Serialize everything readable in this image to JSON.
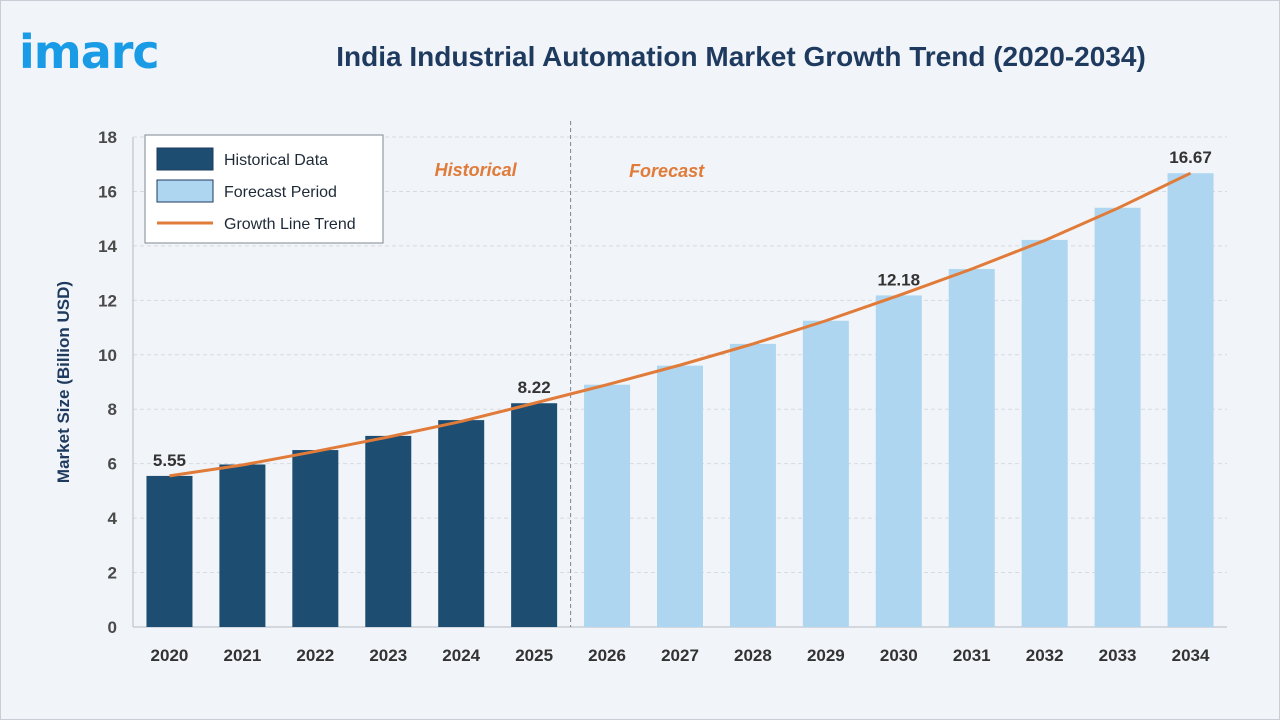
{
  "logo": {
    "text": "imarc",
    "color": "#1a9be6"
  },
  "chart_data": {
    "type": "bar",
    "title": "India Industrial Automation Market Growth Trend (2020-2034)",
    "ylabel": "Market Size (Billion USD)",
    "xlabel": "",
    "ylim": [
      0,
      18
    ],
    "yticks": [
      0,
      2,
      4,
      6,
      8,
      10,
      12,
      14,
      16,
      18
    ],
    "grid": true,
    "categories": [
      "2020",
      "2021",
      "2022",
      "2023",
      "2024",
      "2025",
      "2026",
      "2027",
      "2028",
      "2029",
      "2030",
      "2031",
      "2032",
      "2033",
      "2034"
    ],
    "series": [
      {
        "name": "Historical Data",
        "color": "#1e4d72",
        "values": [
          5.55,
          5.97,
          6.5,
          7.02,
          7.6,
          8.22,
          null,
          null,
          null,
          null,
          null,
          null,
          null,
          null,
          null
        ]
      },
      {
        "name": "Forecast Period",
        "color": "#aed6f1",
        "values": [
          null,
          null,
          null,
          null,
          null,
          null,
          8.9,
          9.6,
          10.4,
          11.25,
          12.18,
          13.15,
          14.22,
          15.4,
          16.67
        ]
      },
      {
        "name": "Growth Line Trend",
        "type": "line",
        "color": "#e07b39",
        "values": [
          5.55,
          5.95,
          6.45,
          6.98,
          7.55,
          8.22,
          8.9,
          9.62,
          10.4,
          11.25,
          12.18,
          13.15,
          14.2,
          15.38,
          16.67
        ]
      }
    ],
    "data_labels": [
      {
        "category": "2020",
        "text": "5.55"
      },
      {
        "category": "2025",
        "text": "8.22"
      },
      {
        "category": "2030",
        "text": "12.18"
      },
      {
        "category": "2034",
        "text": "16.67"
      }
    ],
    "annotations": [
      {
        "text": "Historical",
        "color": "#e07b39"
      },
      {
        "text": "Forecast",
        "color": "#e07b39"
      }
    ],
    "legend": {
      "placement": "top-left"
    }
  }
}
